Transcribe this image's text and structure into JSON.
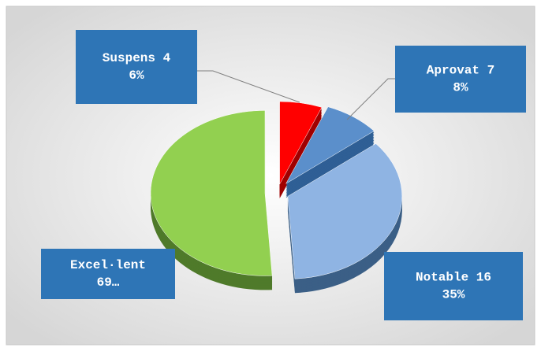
{
  "chart_data": {
    "type": "pie",
    "values": [
      6,
      8,
      35,
      51
    ],
    "colors": [
      "#ff0000",
      "#5b8fcb",
      "#8fb4e3",
      "#92d050"
    ],
    "side_colors": [
      "#a00000",
      "#2f5f95",
      "#3b5f86",
      "#4f7a2a"
    ],
    "labels": [
      [
        "Suspens 4",
        "6%"
      ],
      [
        "Aprovat 7",
        "8%"
      ],
      [
        "Notable 16",
        "35%"
      ],
      [
        "Excel·lent",
        "69…"
      ]
    ]
  }
}
